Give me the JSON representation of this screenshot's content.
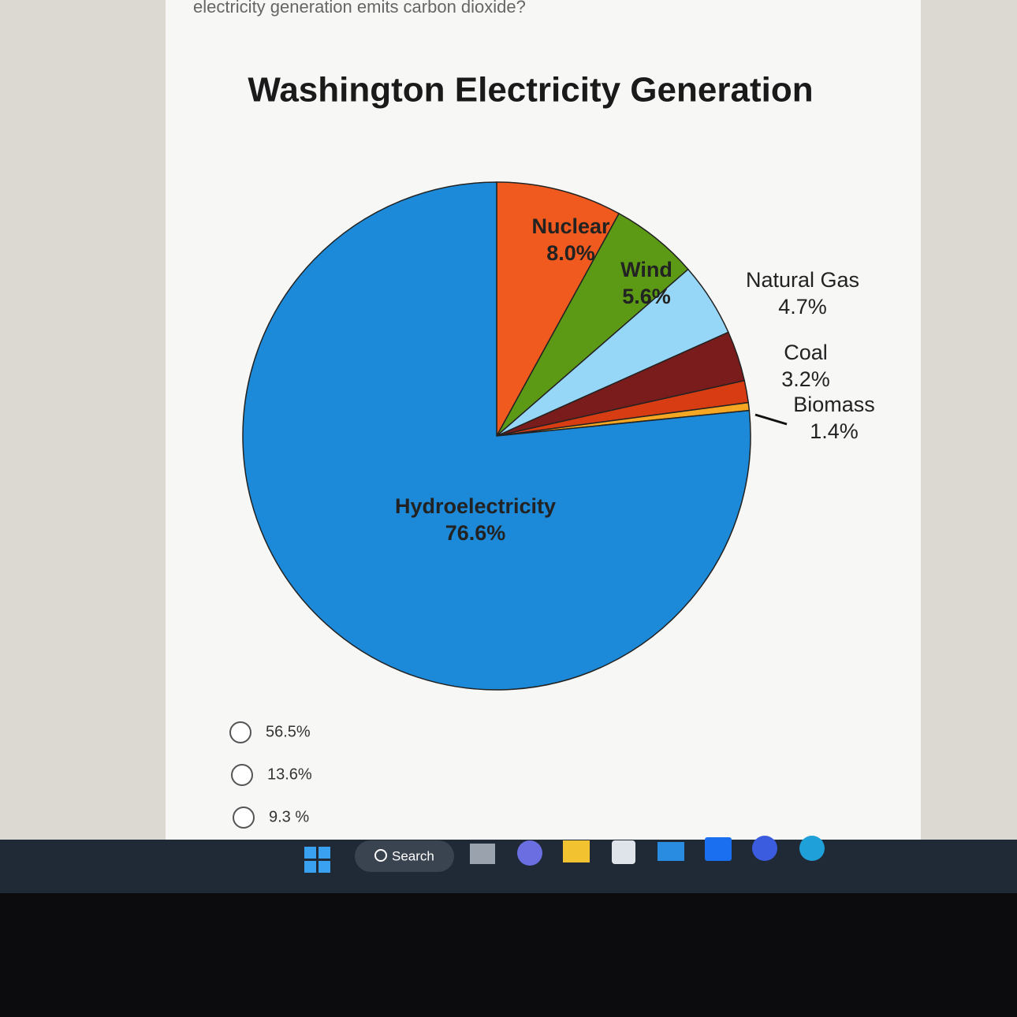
{
  "question": "electricity generation emits carbon dioxide?",
  "chart_data": {
    "type": "pie",
    "title": "Washington Electricity Generation",
    "categories": [
      "Nuclear",
      "Wind",
      "Natural Gas",
      "Coal",
      "Biomass",
      null,
      "Hydroelectricity"
    ],
    "values": [
      8.0,
      5.6,
      4.7,
      3.2,
      1.4,
      0.5,
      76.6
    ],
    "value_labels": [
      "8.0%",
      "5.6%",
      "4.7%",
      "3.2%",
      "1.4%",
      null,
      "76.6%"
    ],
    "colors": [
      "#f05a1e",
      "#5c9a16",
      "#96d6f6",
      "#7a1c1c",
      "#d83c12",
      "#f5a623",
      "#1c8ad8"
    ]
  },
  "options": [
    "56.5%",
    "13.6%",
    "9.3 %"
  ],
  "taskbar": {
    "search": "Search"
  }
}
